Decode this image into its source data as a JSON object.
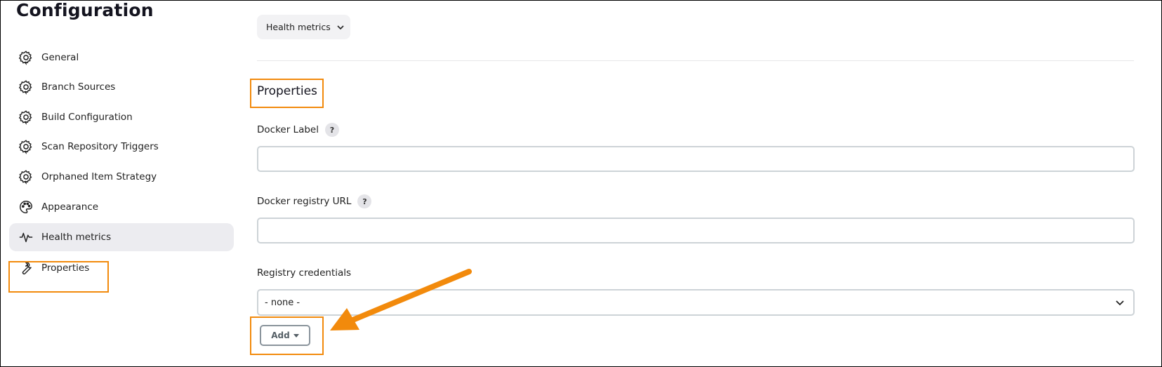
{
  "page": {
    "title": "Configuration"
  },
  "sidebar": {
    "items": [
      {
        "label": "General",
        "icon": "gear-icon"
      },
      {
        "label": "Branch Sources",
        "icon": "gear-icon"
      },
      {
        "label": "Build Configuration",
        "icon": "gear-icon"
      },
      {
        "label": "Scan Repository Triggers",
        "icon": "gear-icon"
      },
      {
        "label": "Orphaned Item Strategy",
        "icon": "gear-icon"
      },
      {
        "label": "Appearance",
        "icon": "palette-icon"
      },
      {
        "label": "Health metrics",
        "icon": "pulse-icon",
        "active": true
      },
      {
        "label": "Properties",
        "icon": "wrench-icon"
      }
    ]
  },
  "main": {
    "section_dropdown": {
      "label": "Health metrics"
    },
    "properties": {
      "title": "Properties",
      "docker_label": {
        "label": "Docker Label",
        "help": "?",
        "value": ""
      },
      "docker_registry_url": {
        "label": "Docker registry URL",
        "help": "?",
        "value": ""
      },
      "registry_credentials": {
        "label": "Registry credentials",
        "selected": "- none -"
      },
      "add_button": {
        "label": "Add"
      }
    }
  },
  "colors": {
    "highlight": "#f28a0c",
    "active_bg": "#ececf0"
  }
}
